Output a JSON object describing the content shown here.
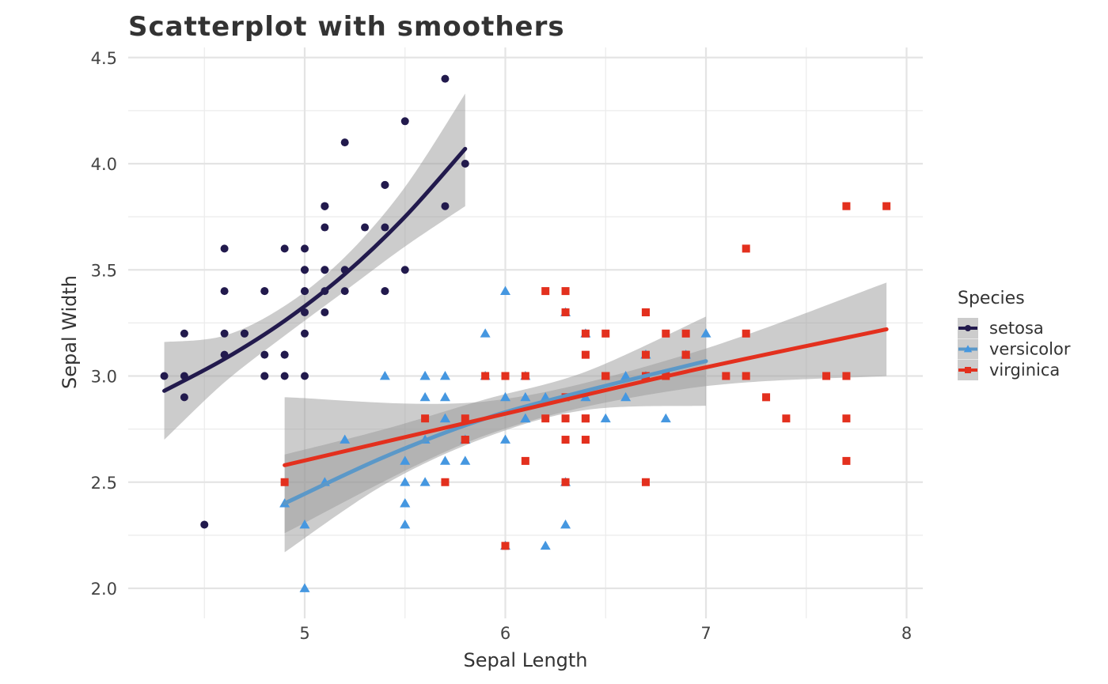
{
  "chart_data": {
    "type": "scatter",
    "title": "Scatterplot with smoothers",
    "xlabel": "Sepal Length",
    "ylabel": "Sepal Width",
    "xlim": [
      4.2,
      8.1
    ],
    "ylim": [
      1.9,
      4.5
    ],
    "x_ticks": [
      5,
      6,
      7,
      8
    ],
    "x_tick_labels": [
      "5",
      "6",
      "7",
      "8"
    ],
    "y_ticks": [
      2.0,
      2.5,
      3.0,
      3.5,
      4.0,
      4.5
    ],
    "y_tick_labels": [
      "2.0",
      "2.5",
      "3.0",
      "3.5",
      "4.0",
      "4.5"
    ],
    "grid": true,
    "legend": {
      "title": "Species",
      "position": "right"
    },
    "series": [
      {
        "name": "setosa",
        "color": "#221a4d",
        "marker": "circle",
        "x": [
          5.1,
          4.9,
          4.7,
          4.6,
          5.0,
          5.4,
          4.6,
          5.0,
          4.4,
          4.9,
          5.4,
          4.8,
          4.8,
          4.3,
          5.8,
          5.7,
          5.4,
          5.1,
          5.7,
          5.1,
          5.4,
          5.1,
          4.6,
          5.1,
          4.8,
          5.0,
          5.0,
          5.2,
          5.2,
          4.7,
          4.8,
          5.4,
          5.2,
          5.5,
          4.9,
          5.0,
          5.5,
          4.9,
          4.4,
          5.1,
          5.0,
          4.5,
          4.4,
          5.0,
          5.1,
          4.8,
          5.1,
          4.6,
          5.3,
          5.0
        ],
        "y": [
          3.5,
          3.0,
          3.2,
          3.1,
          3.6,
          3.9,
          3.4,
          3.4,
          2.9,
          3.1,
          3.7,
          3.4,
          3.0,
          3.0,
          4.0,
          4.4,
          3.9,
          3.5,
          3.8,
          3.8,
          3.4,
          3.7,
          3.6,
          3.3,
          3.4,
          3.0,
          3.4,
          3.5,
          3.4,
          3.2,
          3.1,
          3.4,
          4.1,
          4.2,
          3.1,
          3.2,
          3.5,
          3.6,
          3.0,
          3.4,
          3.5,
          2.3,
          3.2,
          3.5,
          3.8,
          3.0,
          3.8,
          3.2,
          3.7,
          3.3
        ],
        "smooth": {
          "x": [
            4.3,
            4.6,
            4.9,
            5.2,
            5.5,
            5.8
          ],
          "y": [
            2.93,
            3.08,
            3.26,
            3.48,
            3.75,
            4.07
          ],
          "lower": [
            2.7,
            2.97,
            3.19,
            3.4,
            3.61,
            3.8
          ],
          "upper": [
            3.16,
            3.19,
            3.33,
            3.56,
            3.89,
            4.33
          ]
        }
      },
      {
        "name": "versicolor",
        "color": "#4597e0",
        "marker": "triangle",
        "x": [
          7.0,
          6.4,
          6.9,
          5.5,
          6.5,
          5.7,
          6.3,
          4.9,
          6.6,
          5.2,
          5.0,
          5.9,
          6.0,
          6.1,
          5.6,
          6.7,
          5.6,
          5.8,
          6.2,
          5.6,
          5.9,
          6.1,
          6.3,
          6.1,
          6.4,
          6.6,
          6.8,
          6.7,
          6.0,
          5.7,
          5.5,
          5.5,
          5.8,
          6.0,
          5.4,
          6.0,
          6.7,
          6.3,
          5.6,
          5.5,
          5.5,
          6.1,
          5.8,
          5.0,
          5.6,
          5.7,
          5.7,
          6.2,
          5.1,
          5.7
        ],
        "y": [
          3.2,
          3.2,
          3.1,
          2.3,
          2.8,
          2.8,
          3.3,
          2.4,
          2.9,
          2.7,
          2.0,
          3.0,
          2.2,
          2.9,
          2.9,
          3.1,
          3.0,
          2.7,
          2.2,
          2.5,
          3.2,
          2.8,
          2.5,
          2.8,
          2.9,
          3.0,
          2.8,
          3.0,
          2.9,
          2.6,
          2.4,
          2.4,
          2.7,
          2.7,
          3.0,
          3.4,
          3.1,
          2.3,
          3.0,
          2.5,
          2.6,
          3.0,
          2.6,
          2.3,
          2.7,
          3.0,
          2.9,
          2.9,
          2.5,
          2.8
        ],
        "smooth": {
          "x": [
            4.9,
            5.4,
            5.9,
            6.4,
            7.0
          ],
          "y": [
            2.4,
            2.62,
            2.8,
            2.93,
            3.07
          ],
          "lower": [
            2.17,
            2.49,
            2.71,
            2.84,
            2.86
          ],
          "upper": [
            2.63,
            2.75,
            2.89,
            3.02,
            3.28
          ]
        }
      },
      {
        "name": "virginica",
        "color": "#e3301e",
        "marker": "square",
        "x": [
          6.3,
          5.8,
          7.1,
          6.3,
          6.5,
          7.6,
          4.9,
          7.3,
          6.7,
          7.2,
          6.5,
          6.4,
          6.8,
          5.7,
          5.8,
          6.4,
          6.5,
          7.7,
          7.7,
          6.0,
          6.9,
          5.6,
          7.7,
          6.3,
          6.7,
          7.2,
          6.2,
          6.1,
          6.4,
          7.2,
          7.4,
          7.9,
          6.4,
          6.3,
          6.1,
          7.7,
          6.3,
          6.4,
          6.0,
          6.9,
          6.7,
          6.9,
          5.8,
          6.8,
          6.7,
          6.7,
          6.3,
          6.5,
          6.2,
          5.9
        ],
        "y": [
          3.3,
          2.7,
          3.0,
          2.9,
          3.0,
          3.0,
          2.5,
          2.9,
          2.5,
          3.6,
          3.2,
          2.7,
          3.0,
          2.5,
          2.8,
          3.2,
          3.0,
          3.8,
          2.6,
          2.2,
          3.2,
          2.8,
          2.8,
          2.7,
          3.3,
          3.2,
          2.8,
          3.0,
          2.8,
          3.0,
          2.8,
          3.8,
          2.8,
          2.8,
          2.6,
          3.0,
          3.4,
          3.1,
          3.0,
          3.1,
          3.1,
          3.1,
          2.7,
          3.2,
          3.3,
          3.0,
          2.5,
          3.0,
          3.4,
          3.0
        ],
        "smooth": {
          "x": [
            4.9,
            5.9,
            6.9,
            7.9
          ],
          "y": [
            2.58,
            2.8,
            3.02,
            3.22
          ],
          "lower": [
            2.26,
            2.72,
            2.94,
            3.0
          ],
          "upper": [
            2.9,
            2.88,
            3.1,
            3.44
          ]
        }
      }
    ]
  }
}
